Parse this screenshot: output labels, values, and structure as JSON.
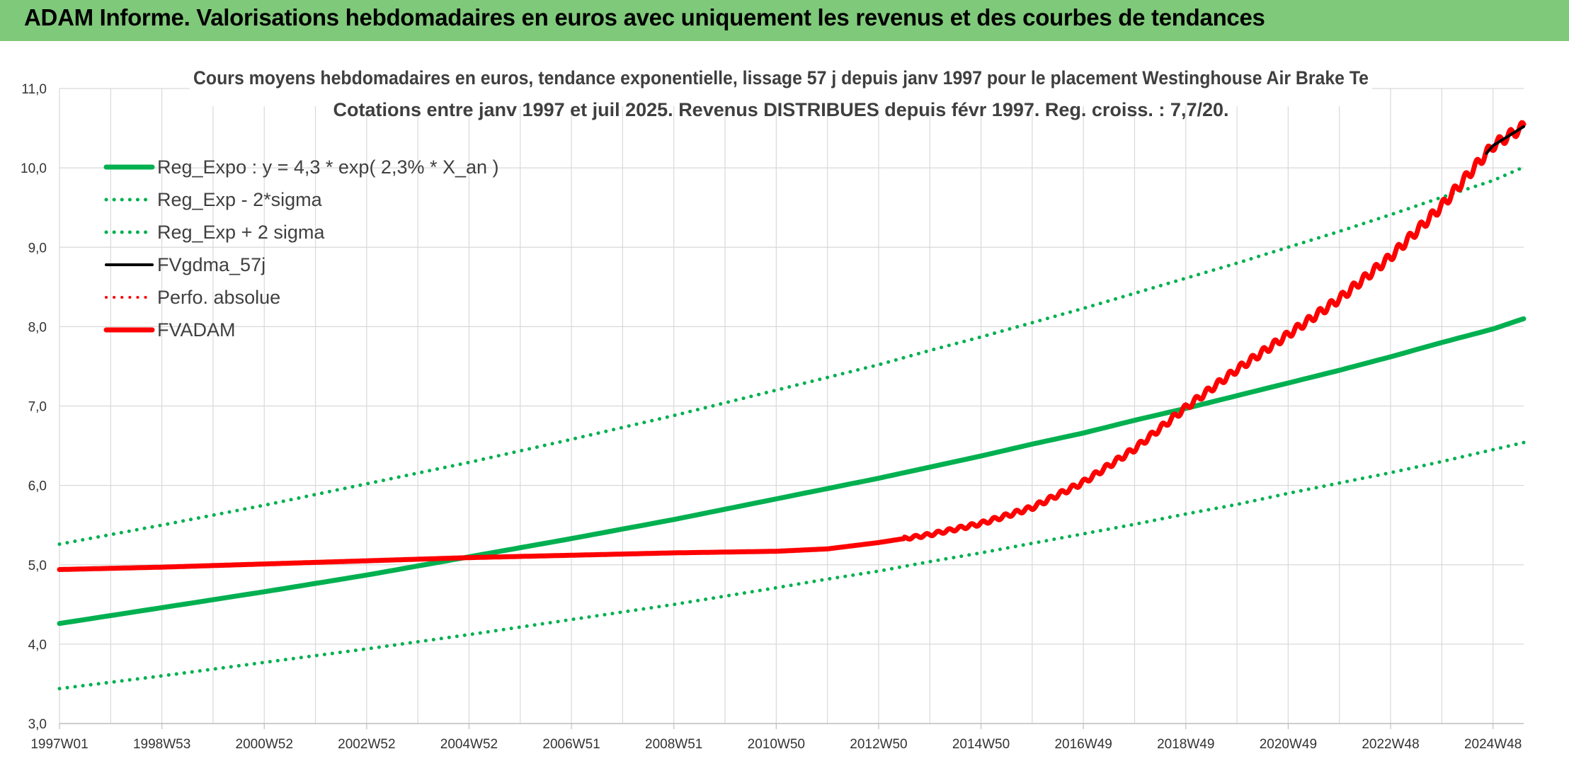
{
  "banner": {
    "title": "ADAM Informe. Valorisations hebdomadaires en euros avec uniquement les revenus et des courbes de tendances",
    "background": "#7fc97a"
  },
  "chart_data": {
    "type": "line",
    "title": "Cours moyens hebdomadaires en euros, tendance exponentielle, lissage 57 j depuis janv 1997 pour le placement Westinghouse Air Brake Te",
    "subtitle": "Cotations entre janv 1997 et juil 2025. Revenus DISTRIBUES depuis févr 1997. Reg. croiss. : 7,7/20.",
    "xlabel": "",
    "ylabel": "",
    "ylim": [
      3.0,
      11.0
    ],
    "xlim": [
      1997.0,
      2025.6
    ],
    "y_ticks": [
      "3,0",
      "4,0",
      "5,0",
      "6,0",
      "7,0",
      "8,0",
      "9,0",
      "10,0",
      "11,0"
    ],
    "x_ticks": [
      {
        "label": "1997W01",
        "x": 1997.0
      },
      {
        "label": "1998W53",
        "x": 1999.0
      },
      {
        "label": "2000W52",
        "x": 2001.0
      },
      {
        "label": "2002W52",
        "x": 2003.0
      },
      {
        "label": "2004W52",
        "x": 2005.0
      },
      {
        "label": "2006W51",
        "x": 2007.0
      },
      {
        "label": "2008W51",
        "x": 2009.0
      },
      {
        "label": "2010W50",
        "x": 2011.0
      },
      {
        "label": "2012W50",
        "x": 2013.0
      },
      {
        "label": "2014W50",
        "x": 2015.0
      },
      {
        "label": "2016W49",
        "x": 2017.0
      },
      {
        "label": "2018W49",
        "x": 2019.0
      },
      {
        "label": "2020W49",
        "x": 2021.0
      },
      {
        "label": "2022W48",
        "x": 2023.0
      },
      {
        "label": "2024W48",
        "x": 2025.0
      }
    ],
    "grid": true,
    "legend_position": "top-left",
    "x": [
      1997.0,
      1999.0,
      2001.0,
      2003.0,
      2005.0,
      2007.0,
      2009.0,
      2011.0,
      2012.0,
      2013.0,
      2014.0,
      2015.0,
      2016.0,
      2017.0,
      2018.0,
      2019.0,
      2020.0,
      2021.0,
      2022.0,
      2023.0,
      2024.0,
      2025.0,
      2025.6
    ],
    "series": [
      {
        "name": "Reg_Expo : y = 4,3 * exp( 2,3% *  X_an )",
        "color": "#00b050",
        "style": "solid",
        "width": 7,
        "values": [
          4.26,
          4.46,
          4.66,
          4.87,
          5.1,
          5.33,
          5.57,
          5.83,
          5.96,
          6.09,
          6.23,
          6.37,
          6.52,
          6.66,
          6.82,
          6.97,
          7.13,
          7.29,
          7.45,
          7.62,
          7.8,
          7.97,
          8.1
        ]
      },
      {
        "name": "Reg_Exp - 2*sigma",
        "color": "#00b050",
        "style": "dotted",
        "width": 5,
        "values": [
          3.44,
          3.6,
          3.77,
          3.94,
          4.12,
          4.31,
          4.5,
          4.71,
          4.82,
          4.92,
          5.04,
          5.15,
          5.27,
          5.39,
          5.51,
          5.64,
          5.76,
          5.9,
          6.03,
          6.16,
          6.3,
          6.45,
          6.54
        ]
      },
      {
        "name": "Reg_Exp + 2 sigma",
        "color": "#00b050",
        "style": "dotted",
        "width": 5,
        "values": [
          5.26,
          5.5,
          5.75,
          6.02,
          6.29,
          6.58,
          6.88,
          7.2,
          7.36,
          7.52,
          7.7,
          7.87,
          8.05,
          8.23,
          8.42,
          8.61,
          8.8,
          9.0,
          9.2,
          9.41,
          9.63,
          9.84,
          10.01
        ]
      },
      {
        "name": "FVgdma_57j",
        "color": "#000000",
        "style": "solid",
        "width": 4,
        "values": [
          4.94,
          4.97,
          5.01,
          5.05,
          5.09,
          5.12,
          5.15,
          5.17,
          5.2,
          5.28,
          5.38,
          5.52,
          5.72,
          6.04,
          6.46,
          6.98,
          7.46,
          7.9,
          8.35,
          8.88,
          9.52,
          10.28,
          10.52
        ]
      },
      {
        "name": "Perfo. absolue",
        "color": "#ff0000",
        "style": "dotted",
        "width": 4,
        "values": [
          4.94,
          4.97,
          5.01,
          5.05,
          5.09,
          5.12,
          5.15,
          5.17,
          5.2,
          5.28,
          5.38,
          5.52,
          5.72,
          6.04,
          6.46,
          6.98,
          7.46,
          7.9,
          8.35,
          8.88,
          9.52,
          10.28,
          10.52
        ]
      },
      {
        "name": "FVADAM",
        "color": "#ff0000",
        "style": "solid",
        "width": 7,
        "values": [
          4.94,
          4.97,
          5.01,
          5.05,
          5.09,
          5.12,
          5.15,
          5.17,
          5.2,
          5.28,
          5.38,
          5.52,
          5.72,
          6.04,
          6.46,
          6.98,
          7.46,
          7.9,
          8.35,
          8.88,
          9.52,
          10.28,
          10.52
        ]
      }
    ]
  }
}
